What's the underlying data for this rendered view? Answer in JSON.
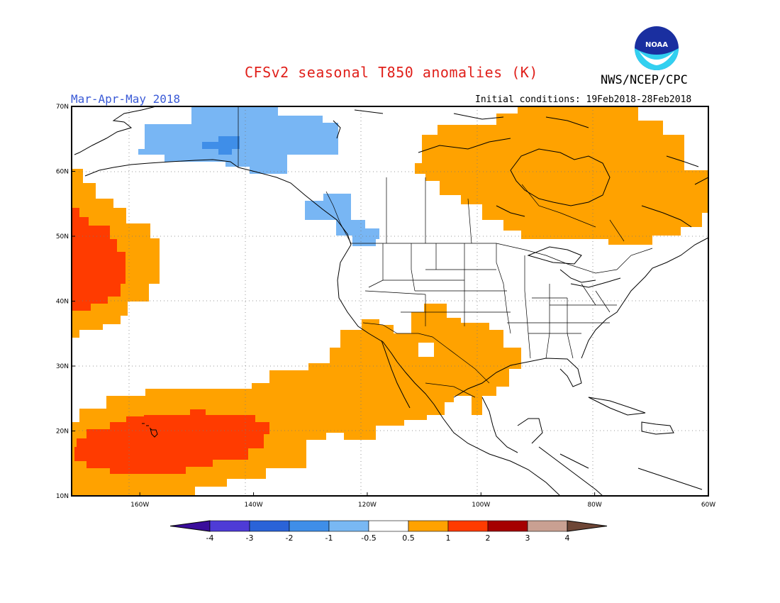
{
  "header": {
    "title": "CFSv2 seasonal T850 anomalies (K)",
    "agency": "NWS/NCEP/CPC",
    "logo_text": "NOAA",
    "period": "Mar-Apr-May 2018",
    "initial_conditions": "Initial conditions: 19Feb2018-28Feb2018"
  },
  "map": {
    "lon_range": [
      -172,
      -60
    ],
    "lat_range": [
      10,
      70
    ],
    "lat_ticks": [
      "70N",
      "60N",
      "50N",
      "40N",
      "30N",
      "20N",
      "10N"
    ],
    "lon_ticks": [
      "160W",
      "140W",
      "120W",
      "100W",
      "80W",
      "60W"
    ]
  },
  "colorbar": {
    "labels": [
      "-4",
      "-3",
      "-2",
      "-1",
      "-0.5",
      "0.5",
      "1",
      "2",
      "3",
      "4"
    ],
    "colors": [
      "#3a0d9b",
      "#4e3bd6",
      "#2a63d8",
      "#3f8ee8",
      "#79b8f3",
      "#ffffff",
      "#ffa200",
      "#ff3b00",
      "#a50000",
      "#c9a092",
      "#6e4636"
    ]
  },
  "anomaly_colors": {
    "weak_negative": "#78b6f4",
    "moderate_negative": "#3f8ee8",
    "weak_positive": "#ffa200",
    "moderate_positive": "#ff3b00"
  }
}
